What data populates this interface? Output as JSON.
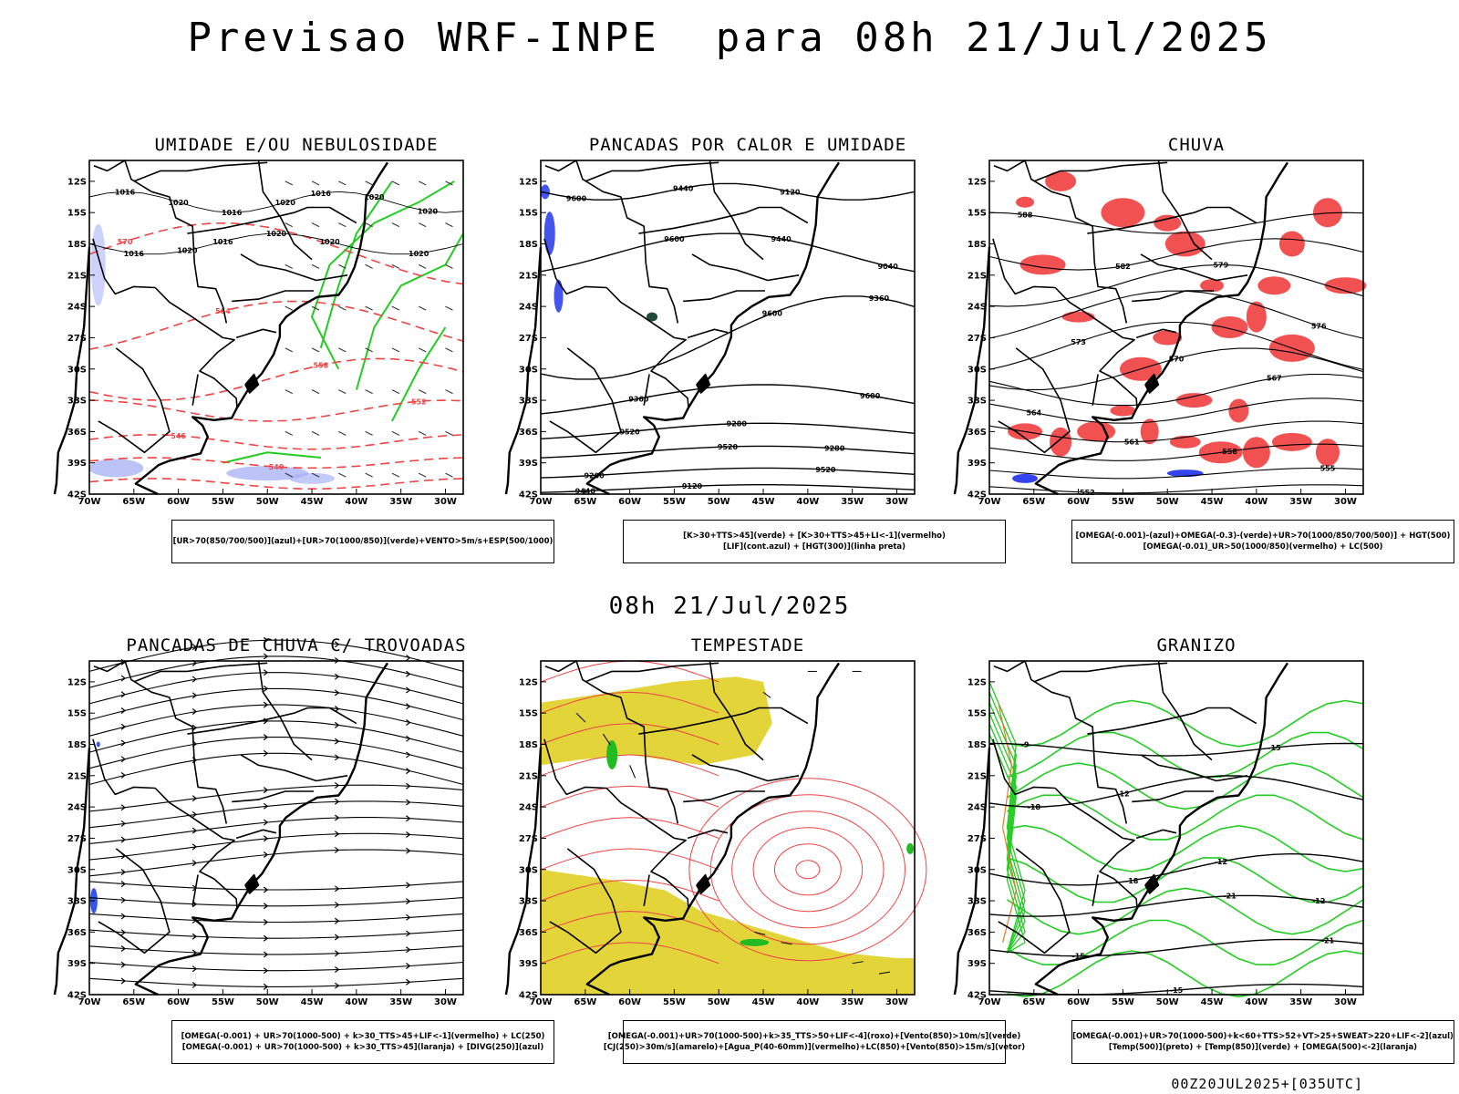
{
  "title": "Previsao WRF-INPE  para 08h 21/Jul/2025",
  "mid_title": "08h 21/Jul/2025",
  "footer": "00Z20JUL2025+[035UTC]",
  "chart_data": [
    {
      "type": "map",
      "title": "UMIDADE E/OU NEBULOSIDADE",
      "legend": [
        "[UR>70(850/700/500)](azul)+[UR>70(1000/850)](verde)+VENTO>5m/s+ESP(500/1000)"
      ],
      "lat_ticks": [
        "12S",
        "15S",
        "18S",
        "21S",
        "24S",
        "27S",
        "30S",
        "33S",
        "36S",
        "39S",
        "42S"
      ],
      "lon_ticks": [
        "70W",
        "65W",
        "60W",
        "55W",
        "50W",
        "45W",
        "40W",
        "35W",
        "30W"
      ],
      "xlim": [
        -70,
        -28
      ],
      "ylim": [
        -42,
        -10
      ],
      "contour_labels": [
        "1016",
        "1016",
        "1016",
        "1020",
        "1020",
        "1020",
        "1020",
        "1016",
        "1016",
        "1020",
        "1020",
        "1020",
        "1020",
        "570",
        "564",
        "558",
        "552",
        "546",
        "540"
      ]
    },
    {
      "type": "map",
      "title": "PANCADAS POR CALOR E UMIDADE",
      "legend": [
        "[K>30+TTS>45](verde) + [K>30+TTS>45+LI<-1](vermelho)",
        "[LIF](cont.azul) + [HGT(300)](linha preta)"
      ],
      "lat_ticks": [
        "12S",
        "15S",
        "18S",
        "21S",
        "24S",
        "27S",
        "30S",
        "33S",
        "36S",
        "39S",
        "42S"
      ],
      "lon_ticks": [
        "70W",
        "65W",
        "60W",
        "55W",
        "50W",
        "45W",
        "40W",
        "35W",
        "30W"
      ],
      "xlim": [
        -70,
        -28
      ],
      "ylim": [
        -42,
        -10
      ],
      "contour_labels": [
        "9600",
        "9600",
        "9600",
        "9600",
        "9520",
        "9520",
        "9520",
        "9440",
        "9440",
        "9440",
        "9360",
        "9360",
        "9280",
        "9280",
        "9200",
        "9120",
        "9120",
        "9040"
      ]
    },
    {
      "type": "map",
      "title": "CHUVA",
      "legend": [
        "[OMEGA(-0.001)-(azul)+OMEGA(-0.3)-(verde)+UR>70(1000/850/700/500)] + HGT(500)",
        "[OMEGA(-0.01)_UR>50(1000/850)(vermelho) + LC(500)"
      ],
      "lat_ticks": [
        "12S",
        "15S",
        "18S",
        "21S",
        "24S",
        "27S",
        "30S",
        "33S",
        "36S",
        "39S",
        "42S"
      ],
      "lon_ticks": [
        "70W",
        "65W",
        "60W",
        "55W",
        "50W",
        "45W",
        "40W",
        "35W",
        "30W"
      ],
      "xlim": [
        -70,
        -28
      ],
      "ylim": [
        -42,
        -10
      ],
      "contour_labels": [
        "588",
        "582",
        "579",
        "576",
        "573",
        "570",
        "567",
        "564",
        "561",
        "558",
        "555",
        "552"
      ]
    },
    {
      "type": "map",
      "title": "PANCADAS DE CHUVA C/ TROVOADAS",
      "legend": [
        "[OMEGA(-0.001) + UR>70(1000-500) + k>30_TTS>45+LIF<-1](vermelho) + LC(250)",
        "[OMEGA(-0.001) + UR>70(1000-500) + k>30_TTS>45](laranja) + [DIVG(250)](azul)"
      ],
      "lat_ticks": [
        "12S",
        "15S",
        "18S",
        "21S",
        "24S",
        "27S",
        "30S",
        "33S",
        "36S",
        "39S",
        "42S"
      ],
      "lon_ticks": [
        "70W",
        "65W",
        "60W",
        "55W",
        "50W",
        "45W",
        "40W",
        "35W",
        "30W"
      ],
      "xlim": [
        -70,
        -28
      ],
      "ylim": [
        -42,
        -10
      ],
      "contour_labels": []
    },
    {
      "type": "map",
      "title": "TEMPESTADE",
      "legend": [
        "[OMEGA(-0.001)+UR>70(1000-500)+k>35_TTS>50+LIF<-4](roxo)+[Vento(850)>10m/s](verde)",
        "[CJ(250)>30m/s](amarelo)+[Agua_P(40-60mm)](vermelho)+LC(850)+[Vento(850)>15m/s](vetor)"
      ],
      "lat_ticks": [
        "12S",
        "15S",
        "18S",
        "21S",
        "24S",
        "27S",
        "30S",
        "33S",
        "36S",
        "39S",
        "42S"
      ],
      "lon_ticks": [
        "70W",
        "65W",
        "60W",
        "55W",
        "50W",
        "45W",
        "40W",
        "35W",
        "30W"
      ],
      "xlim": [
        -70,
        -28
      ],
      "ylim": [
        -42,
        -10
      ],
      "contour_labels": []
    },
    {
      "type": "map",
      "title": "GRANIZO",
      "legend": [
        "[OMEGA(-0.001)+UR>70(1000-500)+k<60+TTS>52+VT>25+SWEAT>220+LIF<-2](azul)",
        "[Temp(500)](preto) + [Temp(850)](verde) + [OMEGA(500)<-2](laranja)"
      ],
      "lat_ticks": [
        "12S",
        "15S",
        "18S",
        "21S",
        "24S",
        "27S",
        "30S",
        "33S",
        "36S",
        "39S",
        "42S"
      ],
      "lon_ticks": [
        "70W",
        "65W",
        "60W",
        "55W",
        "50W",
        "45W",
        "40W",
        "35W",
        "30W"
      ],
      "xlim": [
        -70,
        -28
      ],
      "ylim": [
        -42,
        -10
      ],
      "contour_labels": [
        "-9",
        "-12",
        "-12",
        "-12",
        "-15",
        "-15",
        "-15",
        "-18",
        "-18",
        "-21",
        "-21"
      ]
    }
  ]
}
